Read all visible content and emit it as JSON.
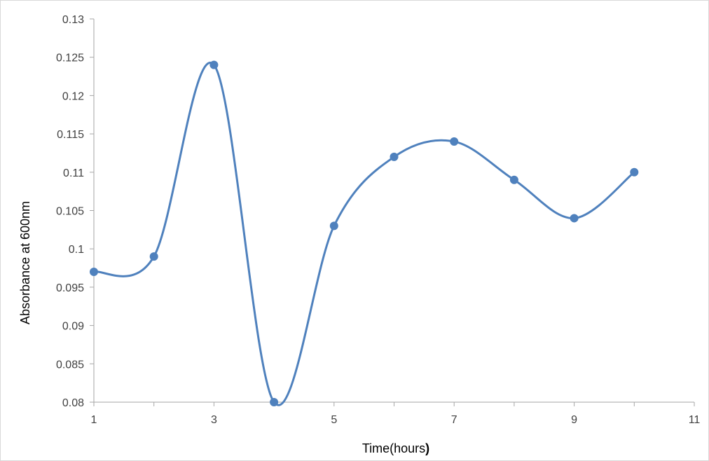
{
  "chart_data": {
    "type": "scatter",
    "mode": "smooth-line-with-markers",
    "title": "",
    "xlabel": "Time(hours",
    "xlabel_suffix": ")",
    "ylabel": "Absorbance at 600nm",
    "xlim": [
      1,
      11
    ],
    "ylim": [
      0.08,
      0.13
    ],
    "xticks": [
      "1",
      "3",
      "5",
      "7",
      "9",
      "11"
    ],
    "xtick_values": [
      1,
      3,
      5,
      7,
      9,
      11
    ],
    "yticks": [
      "0.08",
      "0.085",
      "0.09",
      "0.095",
      "0.1",
      "0.105",
      "0.11",
      "0.115",
      "0.12",
      "0.125",
      "0.13"
    ],
    "ytick_values": [
      0.08,
      0.085,
      0.09,
      0.095,
      0.1,
      0.105,
      0.11,
      0.115,
      0.12,
      0.125,
      0.13
    ],
    "grid": false,
    "legend": false,
    "series": [
      {
        "color": "#4f81bd",
        "x": [
          1,
          2,
          3,
          4,
          5,
          6,
          7,
          8,
          9,
          10
        ],
        "y": [
          0.097,
          0.099,
          0.124,
          0.08,
          0.103,
          0.112,
          0.114,
          0.109,
          0.104,
          0.11
        ]
      }
    ]
  }
}
